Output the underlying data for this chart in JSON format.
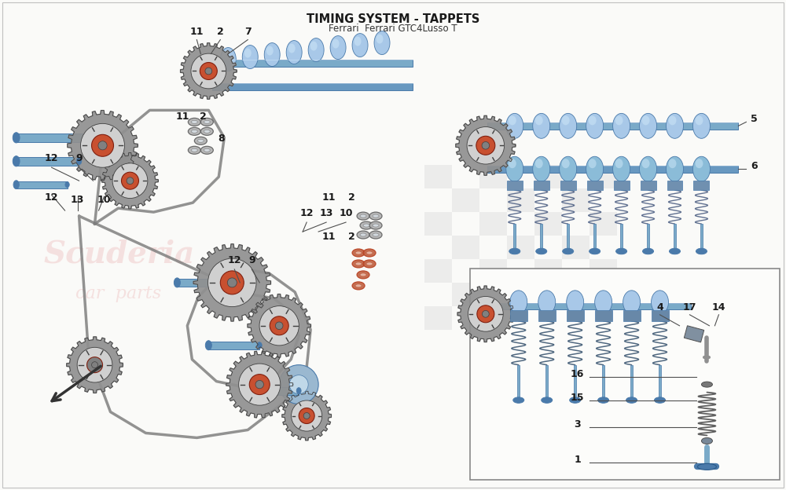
{
  "title": "TIMING SYSTEM - TAPPETS",
  "subtitle": "Ferrari  Ferrari GTC4Lusso T",
  "bg_color": "#fafaf8",
  "text_color": "#1a1a1a",
  "title_fontsize": 10.5,
  "label_fontsize": 9.5,
  "blue_light": "#a8c8e8",
  "blue_mid": "#7aaac8",
  "blue_dark": "#4a7aaa",
  "blue_deep": "#2a5a8a",
  "gray_light": "#c8c8c8",
  "gray_mid": "#909090",
  "gray_dark": "#505050",
  "orange_accent": "#d46030",
  "chain_color": "#787878",
  "seal_gray": "#b0b0b0",
  "seal_dark": "#606060",
  "seal_red": "#b84020",
  "watermark_pink": "#e8a0a0",
  "checker_gray": "#b8b8b8",
  "inset_border": "#888888"
}
